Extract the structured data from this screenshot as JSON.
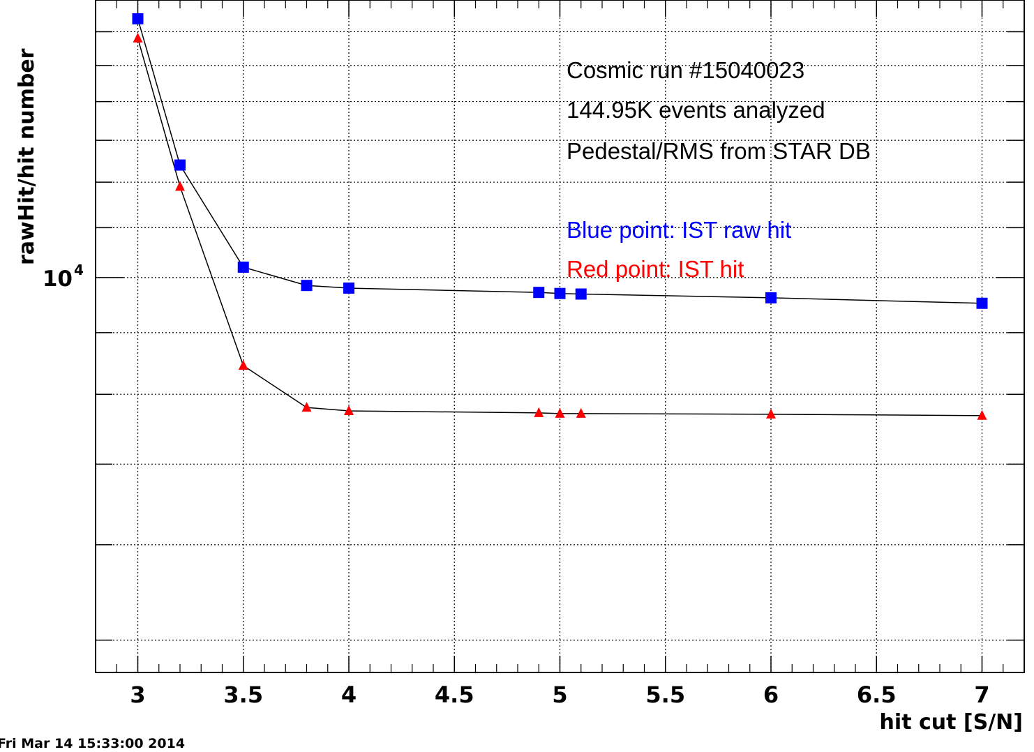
{
  "chart_data": {
    "type": "scatter",
    "title": "",
    "xlabel": "hit cut [S/N]",
    "ylabel": "rawHit/hit number",
    "xlim": [
      2.8,
      7.2
    ],
    "ylim": [
      4700,
      17000
    ],
    "y_scale": "log",
    "grid": true,
    "x_ticks": [
      "3",
      "3.5",
      "4",
      "4.5",
      "5",
      "5.5",
      "6",
      "6.5",
      "7"
    ],
    "y_tick_labels": [
      {
        "base": "10",
        "exponent": "4"
      }
    ],
    "x": [
      3,
      3.2,
      3.5,
      3.8,
      4,
      4.9,
      5,
      5.1,
      6,
      7
    ],
    "series": [
      {
        "name": "IST raw hit",
        "color": "#0000ff",
        "marker": "square",
        "values": [
          16400,
          12400,
          10200,
          9850,
          9800,
          9720,
          9700,
          9690,
          9620,
          9520
        ]
      },
      {
        "name": "IST hit",
        "color": "#ff0000",
        "marker": "triangle",
        "values": [
          15800,
          11900,
          8450,
          7800,
          7750,
          7720,
          7710,
          7710,
          7700,
          7680
        ]
      }
    ],
    "annotations": [
      {
        "text": "Cosmic run #15040023",
        "color": "#000000"
      },
      {
        "text": "144.95K events analyzed",
        "color": "#000000"
      },
      {
        "text": "Pedestal/RMS from STAR DB",
        "color": "#000000"
      },
      {
        "text": "Blue point: IST raw hit",
        "color": "#0000ff"
      },
      {
        "text": "Red point: IST hit",
        "color": "#ff0000"
      }
    ],
    "timestamp": "Fri Mar 14 15:33:00 2014"
  }
}
